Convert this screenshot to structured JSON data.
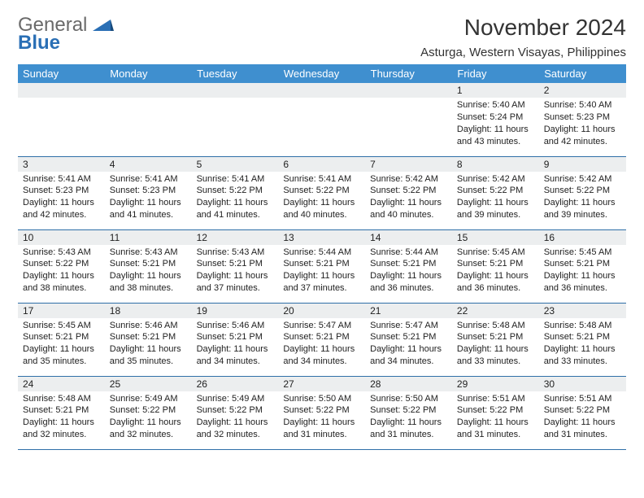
{
  "brand": {
    "line1": "General",
    "line2": "Blue",
    "mark_color": "#2a6fb5",
    "text_gray": "#6a6a6a"
  },
  "title": "November 2024",
  "subtitle": "Asturga, Western Visayas, Philippines",
  "theme": {
    "header_bg": "#3f8fcf",
    "header_fg": "#ffffff",
    "grid_border": "#2f6fa8",
    "daynum_bg": "#eceeef",
    "text_color": "#222222",
    "page_bg": "#ffffff"
  },
  "day_names": [
    "Sunday",
    "Monday",
    "Tuesday",
    "Wednesday",
    "Thursday",
    "Friday",
    "Saturday"
  ],
  "weeks": [
    [
      {
        "n": "",
        "sr": "",
        "ss": "",
        "dl": ""
      },
      {
        "n": "",
        "sr": "",
        "ss": "",
        "dl": ""
      },
      {
        "n": "",
        "sr": "",
        "ss": "",
        "dl": ""
      },
      {
        "n": "",
        "sr": "",
        "ss": "",
        "dl": ""
      },
      {
        "n": "",
        "sr": "",
        "ss": "",
        "dl": ""
      },
      {
        "n": "1",
        "sr": "Sunrise: 5:40 AM",
        "ss": "Sunset: 5:24 PM",
        "dl": "Daylight: 11 hours and 43 minutes."
      },
      {
        "n": "2",
        "sr": "Sunrise: 5:40 AM",
        "ss": "Sunset: 5:23 PM",
        "dl": "Daylight: 11 hours and 42 minutes."
      }
    ],
    [
      {
        "n": "3",
        "sr": "Sunrise: 5:41 AM",
        "ss": "Sunset: 5:23 PM",
        "dl": "Daylight: 11 hours and 42 minutes."
      },
      {
        "n": "4",
        "sr": "Sunrise: 5:41 AM",
        "ss": "Sunset: 5:23 PM",
        "dl": "Daylight: 11 hours and 41 minutes."
      },
      {
        "n": "5",
        "sr": "Sunrise: 5:41 AM",
        "ss": "Sunset: 5:22 PM",
        "dl": "Daylight: 11 hours and 41 minutes."
      },
      {
        "n": "6",
        "sr": "Sunrise: 5:41 AM",
        "ss": "Sunset: 5:22 PM",
        "dl": "Daylight: 11 hours and 40 minutes."
      },
      {
        "n": "7",
        "sr": "Sunrise: 5:42 AM",
        "ss": "Sunset: 5:22 PM",
        "dl": "Daylight: 11 hours and 40 minutes."
      },
      {
        "n": "8",
        "sr": "Sunrise: 5:42 AM",
        "ss": "Sunset: 5:22 PM",
        "dl": "Daylight: 11 hours and 39 minutes."
      },
      {
        "n": "9",
        "sr": "Sunrise: 5:42 AM",
        "ss": "Sunset: 5:22 PM",
        "dl": "Daylight: 11 hours and 39 minutes."
      }
    ],
    [
      {
        "n": "10",
        "sr": "Sunrise: 5:43 AM",
        "ss": "Sunset: 5:22 PM",
        "dl": "Daylight: 11 hours and 38 minutes."
      },
      {
        "n": "11",
        "sr": "Sunrise: 5:43 AM",
        "ss": "Sunset: 5:21 PM",
        "dl": "Daylight: 11 hours and 38 minutes."
      },
      {
        "n": "12",
        "sr": "Sunrise: 5:43 AM",
        "ss": "Sunset: 5:21 PM",
        "dl": "Daylight: 11 hours and 37 minutes."
      },
      {
        "n": "13",
        "sr": "Sunrise: 5:44 AM",
        "ss": "Sunset: 5:21 PM",
        "dl": "Daylight: 11 hours and 37 minutes."
      },
      {
        "n": "14",
        "sr": "Sunrise: 5:44 AM",
        "ss": "Sunset: 5:21 PM",
        "dl": "Daylight: 11 hours and 36 minutes."
      },
      {
        "n": "15",
        "sr": "Sunrise: 5:45 AM",
        "ss": "Sunset: 5:21 PM",
        "dl": "Daylight: 11 hours and 36 minutes."
      },
      {
        "n": "16",
        "sr": "Sunrise: 5:45 AM",
        "ss": "Sunset: 5:21 PM",
        "dl": "Daylight: 11 hours and 36 minutes."
      }
    ],
    [
      {
        "n": "17",
        "sr": "Sunrise: 5:45 AM",
        "ss": "Sunset: 5:21 PM",
        "dl": "Daylight: 11 hours and 35 minutes."
      },
      {
        "n": "18",
        "sr": "Sunrise: 5:46 AM",
        "ss": "Sunset: 5:21 PM",
        "dl": "Daylight: 11 hours and 35 minutes."
      },
      {
        "n": "19",
        "sr": "Sunrise: 5:46 AM",
        "ss": "Sunset: 5:21 PM",
        "dl": "Daylight: 11 hours and 34 minutes."
      },
      {
        "n": "20",
        "sr": "Sunrise: 5:47 AM",
        "ss": "Sunset: 5:21 PM",
        "dl": "Daylight: 11 hours and 34 minutes."
      },
      {
        "n": "21",
        "sr": "Sunrise: 5:47 AM",
        "ss": "Sunset: 5:21 PM",
        "dl": "Daylight: 11 hours and 34 minutes."
      },
      {
        "n": "22",
        "sr": "Sunrise: 5:48 AM",
        "ss": "Sunset: 5:21 PM",
        "dl": "Daylight: 11 hours and 33 minutes."
      },
      {
        "n": "23",
        "sr": "Sunrise: 5:48 AM",
        "ss": "Sunset: 5:21 PM",
        "dl": "Daylight: 11 hours and 33 minutes."
      }
    ],
    [
      {
        "n": "24",
        "sr": "Sunrise: 5:48 AM",
        "ss": "Sunset: 5:21 PM",
        "dl": "Daylight: 11 hours and 32 minutes."
      },
      {
        "n": "25",
        "sr": "Sunrise: 5:49 AM",
        "ss": "Sunset: 5:22 PM",
        "dl": "Daylight: 11 hours and 32 minutes."
      },
      {
        "n": "26",
        "sr": "Sunrise: 5:49 AM",
        "ss": "Sunset: 5:22 PM",
        "dl": "Daylight: 11 hours and 32 minutes."
      },
      {
        "n": "27",
        "sr": "Sunrise: 5:50 AM",
        "ss": "Sunset: 5:22 PM",
        "dl": "Daylight: 11 hours and 31 minutes."
      },
      {
        "n": "28",
        "sr": "Sunrise: 5:50 AM",
        "ss": "Sunset: 5:22 PM",
        "dl": "Daylight: 11 hours and 31 minutes."
      },
      {
        "n": "29",
        "sr": "Sunrise: 5:51 AM",
        "ss": "Sunset: 5:22 PM",
        "dl": "Daylight: 11 hours and 31 minutes."
      },
      {
        "n": "30",
        "sr": "Sunrise: 5:51 AM",
        "ss": "Sunset: 5:22 PM",
        "dl": "Daylight: 11 hours and 31 minutes."
      }
    ]
  ]
}
